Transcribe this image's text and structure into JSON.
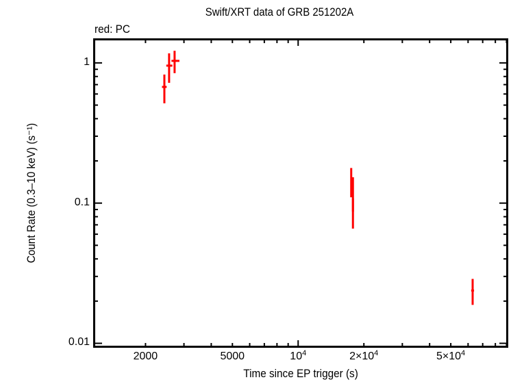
{
  "chart_data": {
    "type": "scatter",
    "title": "Swift/XRT data of GRB 251202A",
    "legend_text": "red: PC",
    "xlabel": "Time since EP trigger (s)",
    "ylabel": "Count Rate (0.3–10 keV) (s⁻¹)",
    "xscale": "log",
    "yscale": "log",
    "xlim": [
      1160,
      91000
    ],
    "ylim": [
      0.0094,
      1.48
    ],
    "x_ticks": [
      {
        "value": 2000,
        "label": "2000"
      },
      {
        "value": 5000,
        "label": "5000"
      },
      {
        "value": 10000,
        "label": "10^4"
      },
      {
        "value": 20000,
        "label": "2×10^4"
      },
      {
        "value": 50000,
        "label": "5×10^4"
      }
    ],
    "y_ticks": [
      {
        "value": 1,
        "label": "1"
      },
      {
        "value": 0.1,
        "label": "0.1"
      },
      {
        "value": 0.01,
        "label": "0.01"
      }
    ],
    "grid": false,
    "series": [
      {
        "name": "PC",
        "color": "#ff0000",
        "points": [
          {
            "t": 2440,
            "t_lo": 2380,
            "t_hi": 2500,
            "rate": 0.674,
            "rate_lo": 0.515,
            "rate_hi": 0.826
          },
          {
            "t": 2565,
            "t_lo": 2490,
            "t_hi": 2655,
            "rate": 0.956,
            "rate_lo": 0.721,
            "rate_hi": 1.17
          },
          {
            "t": 2718,
            "t_lo": 2630,
            "t_hi": 2860,
            "rate": 1.034,
            "rate_lo": 0.845,
            "rate_hi": 1.22
          },
          {
            "t": 17500,
            "t_lo": 17420,
            "t_hi": 17580,
            "rate": 0.141,
            "rate_lo": 0.11,
            "rate_hi": 0.178
          },
          {
            "t": 17820,
            "t_lo": 17700,
            "t_hi": 17950,
            "rate": 0.125,
            "rate_lo": 0.087,
            "rate_hi": 0.153
          },
          {
            "t": 17820,
            "t_lo": 17700,
            "t_hi": 17950,
            "rate": 0.0909,
            "rate_lo": 0.0658,
            "rate_hi": 0.108
          },
          {
            "t": 62960,
            "t_lo": 62000,
            "t_hi": 63900,
            "rate": 0.0238,
            "rate_lo": 0.0188,
            "rate_hi": 0.0288
          }
        ]
      }
    ]
  },
  "colors": {
    "frame": "#000000",
    "series": "#ff0000"
  }
}
